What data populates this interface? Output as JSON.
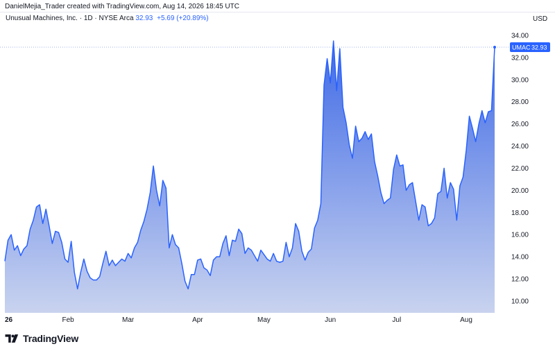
{
  "header": {
    "credit": "DanielMejia_Trader created with TradingView.com, Aug 14, 2026 18:45 UTC",
    "symbol_description": "Unusual Machines, Inc. · 1D · NYSE Arca",
    "last_price": "32.93",
    "change_text": "+5.69 (+20.89%)",
    "currency": "USD"
  },
  "price_label": {
    "ticker": "UMAC",
    "value": "32.93"
  },
  "footer": {
    "brand": "TradingView",
    "logo_icon": "tradingview-logo-icon"
  },
  "colors": {
    "line": "#2962ff",
    "fill_top": "#3f6ae6",
    "fill_bottom": "#c9d3ef",
    "price_label_bg": "#2962ff",
    "grid": "#f0f3fa"
  },
  "chart_data": {
    "type": "area",
    "title": "Unusual Machines, Inc. · 1D · NYSE Arca",
    "xlabel": "",
    "ylabel": "USD",
    "ylim": [
      9.0,
      35.0
    ],
    "y_ticks": [
      "10.00",
      "12.00",
      "14.00",
      "16.00",
      "18.00",
      "20.00",
      "22.00",
      "24.00",
      "26.00",
      "28.00",
      "30.00",
      "32.00",
      "34.00"
    ],
    "x_ticks": [
      {
        "label": "26",
        "index": 0
      },
      {
        "label": "Feb",
        "index": 20
      },
      {
        "label": "Mar",
        "index": 39
      },
      {
        "label": "Apr",
        "index": 61
      },
      {
        "label": "May",
        "index": 82
      },
      {
        "label": "Jun",
        "index": 103
      },
      {
        "label": "Jul",
        "index": 124
      },
      {
        "label": "Aug",
        "index": 146
      }
    ],
    "grid": false,
    "series": [
      {
        "name": "UMAC",
        "values": [
          13.6,
          15.5,
          16.0,
          14.6,
          15.0,
          14.1,
          14.7,
          15.0,
          16.5,
          17.3,
          18.5,
          18.7,
          17.0,
          18.3,
          16.8,
          15.2,
          16.3,
          16.2,
          15.3,
          13.8,
          13.5,
          15.4,
          12.6,
          11.1,
          12.6,
          13.8,
          12.7,
          12.1,
          11.9,
          11.9,
          12.2,
          13.4,
          14.5,
          13.2,
          13.7,
          13.2,
          13.5,
          13.8,
          13.6,
          14.3,
          13.9,
          14.8,
          15.3,
          16.4,
          17.2,
          18.3,
          19.8,
          22.2,
          20.0,
          18.6,
          20.9,
          20.2,
          14.8,
          16.0,
          15.1,
          14.8,
          13.4,
          11.8,
          11.1,
          12.4,
          12.4,
          13.7,
          13.8,
          13.0,
          12.8,
          12.3,
          13.7,
          14.0,
          14.0,
          15.2,
          15.9,
          14.1,
          15.5,
          15.4,
          16.5,
          16.1,
          14.3,
          14.8,
          14.6,
          14.1,
          13.6,
          14.6,
          14.2,
          13.8,
          13.6,
          14.3,
          13.6,
          13.5,
          13.6,
          15.3,
          14.0,
          14.8,
          17.0,
          16.3,
          14.5,
          13.7,
          14.4,
          14.7,
          16.6,
          17.3,
          18.8,
          29.5,
          31.9,
          29.7,
          33.5,
          29.0,
          32.8,
          27.5,
          26.1,
          24.1,
          22.9,
          25.8,
          24.4,
          24.7,
          25.3,
          24.6,
          25.1,
          22.6,
          21.3,
          19.8,
          18.8,
          19.1,
          19.3,
          21.9,
          23.2,
          22.2,
          22.3,
          20.0,
          20.5,
          20.7,
          19.0,
          17.3,
          18.7,
          18.5,
          16.8,
          17.0,
          17.5,
          19.7,
          19.9,
          22.0,
          19.3,
          20.7,
          20.1,
          17.3,
          20.4,
          21.2,
          23.6,
          26.7,
          25.6,
          24.4,
          26.0,
          27.2,
          26.1,
          27.1,
          27.2,
          32.93
        ]
      }
    ]
  }
}
